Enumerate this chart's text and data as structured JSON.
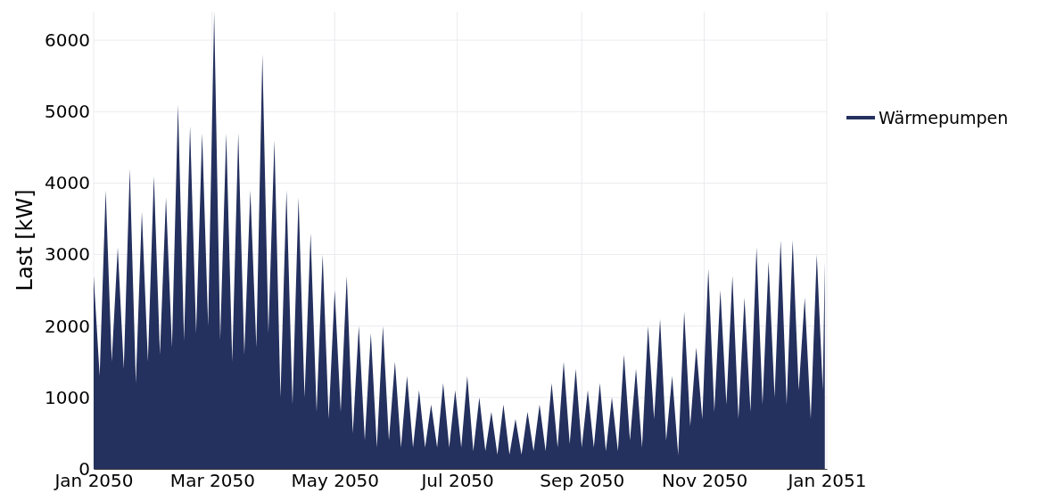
{
  "chart_data": {
    "type": "area",
    "ylabel": "Last [kW]",
    "legend": "top right",
    "grid": true,
    "xlim": [
      "2050-01-01",
      "2051-01-01"
    ],
    "xticks": [
      {
        "value": "2050-01",
        "label": "Jan 2050"
      },
      {
        "value": "2050-03",
        "label": "Mar 2050"
      },
      {
        "value": "2050-05",
        "label": "May 2050"
      },
      {
        "value": "2050-07",
        "label": "Jul 2050"
      },
      {
        "value": "2050-09",
        "label": "Sep 2050"
      },
      {
        "value": "2050-11",
        "label": "Nov 2050"
      },
      {
        "value": "2051-01",
        "label": "Jan 2051"
      }
    ],
    "ylim": [
      0,
      6400
    ],
    "yticks": [
      0,
      1000,
      2000,
      3000,
      4000,
      5000,
      6000
    ],
    "x": [
      "2050-01-01",
      "2050-01-04",
      "2050-01-07",
      "2050-01-10",
      "2050-01-13",
      "2050-01-16",
      "2050-01-19",
      "2050-01-22",
      "2050-01-25",
      "2050-01-28",
      "2050-01-31",
      "2050-02-03",
      "2050-02-06",
      "2050-02-09",
      "2050-02-12",
      "2050-02-15",
      "2050-02-18",
      "2050-02-21",
      "2050-02-24",
      "2050-02-27",
      "2050-03-02",
      "2050-03-05",
      "2050-03-08",
      "2050-03-11",
      "2050-03-14",
      "2050-03-17",
      "2050-03-20",
      "2050-03-23",
      "2050-03-26",
      "2050-03-29",
      "2050-04-01",
      "2050-04-04",
      "2050-04-07",
      "2050-04-10",
      "2050-04-13",
      "2050-04-16",
      "2050-04-19",
      "2050-04-22",
      "2050-04-25",
      "2050-04-28",
      "2050-05-01",
      "2050-05-04",
      "2050-05-07",
      "2050-05-10",
      "2050-05-13",
      "2050-05-16",
      "2050-05-19",
      "2050-05-22",
      "2050-05-25",
      "2050-05-28",
      "2050-05-31",
      "2050-06-03",
      "2050-06-06",
      "2050-06-09",
      "2050-06-12",
      "2050-06-15",
      "2050-06-18",
      "2050-06-21",
      "2050-06-24",
      "2050-06-27",
      "2050-06-30",
      "2050-07-03",
      "2050-07-06",
      "2050-07-09",
      "2050-07-12",
      "2050-07-15",
      "2050-07-18",
      "2050-07-21",
      "2050-07-24",
      "2050-07-27",
      "2050-07-30",
      "2050-08-02",
      "2050-08-05",
      "2050-08-08",
      "2050-08-11",
      "2050-08-14",
      "2050-08-17",
      "2050-08-20",
      "2050-08-23",
      "2050-08-26",
      "2050-08-29",
      "2050-09-01",
      "2050-09-04",
      "2050-09-07",
      "2050-09-10",
      "2050-09-13",
      "2050-09-16",
      "2050-09-19",
      "2050-09-22",
      "2050-09-25",
      "2050-09-28",
      "2050-10-01",
      "2050-10-04",
      "2050-10-07",
      "2050-10-10",
      "2050-10-13",
      "2050-10-16",
      "2050-10-19",
      "2050-10-22",
      "2050-10-25",
      "2050-10-28",
      "2050-10-31",
      "2050-11-03",
      "2050-11-06",
      "2050-11-09",
      "2050-11-12",
      "2050-11-15",
      "2050-11-18",
      "2050-11-21",
      "2050-11-24",
      "2050-11-27",
      "2050-11-30",
      "2050-12-03",
      "2050-12-06",
      "2050-12-09",
      "2050-12-12",
      "2050-12-15",
      "2050-12-18",
      "2050-12-21",
      "2050-12-24",
      "2050-12-27",
      "2050-12-30",
      "2050-12-31"
    ],
    "series": [
      {
        "name": "Wärmepumpen",
        "color": "#24305e",
        "values": [
          2700,
          1300,
          3900,
          1500,
          3100,
          1400,
          4200,
          1200,
          3600,
          1500,
          4100,
          1600,
          3800,
          1700,
          5100,
          1800,
          4800,
          1900,
          4700,
          2000,
          6400,
          1800,
          4700,
          1500,
          4700,
          1600,
          3900,
          1700,
          5800,
          1900,
          4600,
          1000,
          3900,
          900,
          3800,
          1000,
          3300,
          800,
          3000,
          700,
          2500,
          800,
          2700,
          500,
          2000,
          400,
          1900,
          300,
          2000,
          400,
          1500,
          300,
          1300,
          300,
          1100,
          300,
          900,
          300,
          1200,
          300,
          1100,
          300,
          1300,
          250,
          1000,
          250,
          800,
          200,
          900,
          200,
          700,
          200,
          800,
          250,
          900,
          250,
          1200,
          300,
          1500,
          350,
          1400,
          300,
          1100,
          300,
          1200,
          250,
          1000,
          250,
          1600,
          400,
          1400,
          300,
          2000,
          700,
          2100,
          400,
          1300,
          200,
          2200,
          600,
          1700,
          700,
          2800,
          800,
          2500,
          900,
          2700,
          700,
          2400,
          800,
          3100,
          900,
          2900,
          1000,
          3200,
          900,
          3200,
          1100,
          2400,
          700,
          3000,
          1100,
          2900
        ]
      }
    ]
  }
}
